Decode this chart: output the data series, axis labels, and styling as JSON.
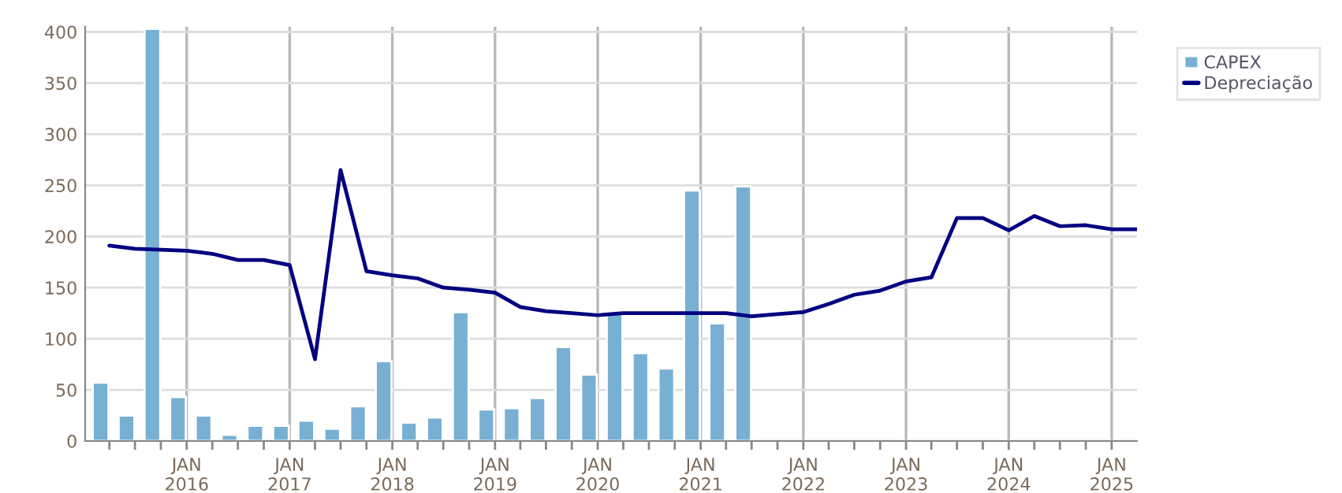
{
  "chart_data": {
    "type": "bar",
    "xlim": [
      "2015-01-05",
      "2025-04-01"
    ],
    "ylim": [
      0,
      405
    ],
    "yticks": [
      0,
      50,
      100,
      150,
      200,
      250,
      300,
      350,
      400
    ],
    "xticks": [
      {
        "value": "2015-04-01",
        "label": null
      },
      {
        "value": "2015-07-01",
        "label": null
      },
      {
        "value": "2015-10-01",
        "label": null
      },
      {
        "value": "2016-01-01",
        "label": "JAN\n2016"
      },
      {
        "value": "2016-04-01",
        "label": null
      },
      {
        "value": "2016-07-01",
        "label": null
      },
      {
        "value": "2016-10-01",
        "label": null
      },
      {
        "value": "2017-01-01",
        "label": "JAN\n2017"
      },
      {
        "value": "2017-04-01",
        "label": null
      },
      {
        "value": "2017-07-01",
        "label": null
      },
      {
        "value": "2017-10-01",
        "label": null
      },
      {
        "value": "2018-01-01",
        "label": "JAN\n2018"
      },
      {
        "value": "2018-04-01",
        "label": null
      },
      {
        "value": "2018-07-01",
        "label": null
      },
      {
        "value": "2018-10-01",
        "label": null
      },
      {
        "value": "2019-01-01",
        "label": "JAN\n2019"
      },
      {
        "value": "2019-04-01",
        "label": null
      },
      {
        "value": "2019-07-01",
        "label": null
      },
      {
        "value": "2019-10-01",
        "label": null
      },
      {
        "value": "2020-01-01",
        "label": "JAN\n2020"
      },
      {
        "value": "2020-04-01",
        "label": null
      },
      {
        "value": "2020-07-01",
        "label": null
      },
      {
        "value": "2020-10-01",
        "label": null
      },
      {
        "value": "2021-01-01",
        "label": "JAN\n2021"
      },
      {
        "value": "2021-04-01",
        "label": null
      },
      {
        "value": "2021-07-01",
        "label": null
      },
      {
        "value": "2021-10-01",
        "label": null
      },
      {
        "value": "2022-01-01",
        "label": "JAN\n2022"
      },
      {
        "value": "2022-04-01",
        "label": null
      },
      {
        "value": "2022-07-01",
        "label": null
      },
      {
        "value": "2022-10-01",
        "label": null
      },
      {
        "value": "2023-01-01",
        "label": "JAN\n2023"
      },
      {
        "value": "2023-04-01",
        "label": null
      },
      {
        "value": "2023-07-01",
        "label": null
      },
      {
        "value": "2023-10-01",
        "label": null
      },
      {
        "value": "2024-01-01",
        "label": "JAN\n2024"
      },
      {
        "value": "2024-04-01",
        "label": null
      },
      {
        "value": "2024-07-01",
        "label": null
      },
      {
        "value": "2024-10-01",
        "label": null
      },
      {
        "value": "2025-01-01",
        "label": "JAN\n2025"
      }
    ],
    "grid": true,
    "legend": "top right",
    "series": [
      {
        "name": "CAPEX",
        "color": "#78b0d3",
        "x": [
          "2015-03-01",
          "2015-06-01",
          "2015-09-01",
          "2015-12-01",
          "2016-03-01",
          "2016-06-01",
          "2016-09-01",
          "2016-12-01",
          "2017-03-01",
          "2017-06-01",
          "2017-09-01",
          "2017-12-01",
          "2018-03-01",
          "2018-06-01",
          "2018-09-01",
          "2018-12-01",
          "2019-03-01",
          "2019-06-01",
          "2019-09-01",
          "2019-12-01",
          "2020-03-01",
          "2020-06-01",
          "2020-09-01",
          "2020-12-01",
          "2021-03-01",
          "2021-06-01"
        ],
        "values": [
          57,
          25,
          403,
          43,
          25,
          6,
          15,
          15,
          20,
          12,
          34,
          78,
          18,
          23,
          126,
          31,
          32,
          42,
          92,
          65,
          126,
          86,
          71,
          245,
          115,
          249
        ]
      },
      {
        "name": "Depreciação",
        "type": "line",
        "color": "#000080",
        "x": [
          "2015-04-01",
          "2015-07-01",
          "2015-10-01",
          "2016-01-01",
          "2016-04-01",
          "2016-07-01",
          "2016-10-01",
          "2017-01-01",
          "2017-04-01",
          "2017-07-01",
          "2017-10-01",
          "2018-01-01",
          "2018-04-01",
          "2018-07-01",
          "2018-10-01",
          "2019-01-01",
          "2019-04-01",
          "2019-07-01",
          "2019-10-01",
          "2020-01-01",
          "2020-04-01",
          "2020-07-01",
          "2020-10-01",
          "2021-01-01",
          "2021-04-01",
          "2021-07-01",
          "2021-10-01",
          "2022-01-01",
          "2022-04-01",
          "2022-07-01",
          "2022-10-01",
          "2023-01-01",
          "2023-04-01",
          "2023-07-01",
          "2023-10-01",
          "2024-01-01",
          "2024-04-01",
          "2024-07-01",
          "2024-10-01",
          "2025-01-01",
          "2025-04-01"
        ],
        "values": [
          191,
          188,
          187,
          186,
          183,
          177,
          177,
          172,
          80,
          265,
          166,
          162,
          159,
          150,
          148,
          145,
          131,
          127,
          125,
          123,
          125,
          125,
          125,
          125,
          125,
          122,
          124,
          126,
          134,
          143,
          147,
          156,
          160,
          218,
          218,
          206,
          220,
          210,
          211,
          207,
          207
        ]
      }
    ]
  }
}
